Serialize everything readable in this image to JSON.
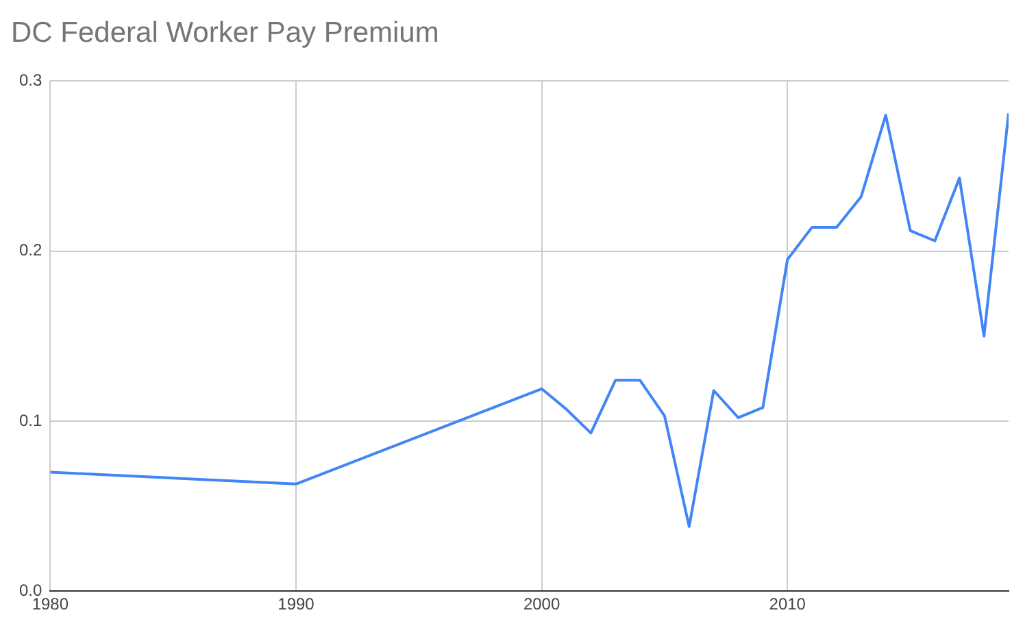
{
  "chart_data": {
    "type": "line",
    "title": "DC Federal Worker Pay Premium",
    "x": [
      1980,
      1990,
      2000,
      2001,
      2002,
      2003,
      2004,
      2005,
      2006,
      2007,
      2008,
      2009,
      2010,
      2011,
      2012,
      2013,
      2014,
      2015,
      2016,
      2017,
      2018,
      2019
    ],
    "series": [
      {
        "color": "#4285f4",
        "values": [
          0.07,
          0.063,
          0.119,
          0.107,
          0.093,
          0.124,
          0.124,
          0.103,
          0.038,
          0.118,
          0.102,
          0.108,
          0.195,
          0.214,
          0.214,
          0.232,
          0.28,
          0.212,
          0.206,
          0.243,
          0.15,
          0.281
        ]
      }
    ],
    "xlim": [
      1980,
      2019
    ],
    "xticks": [
      1980,
      1990,
      2000,
      2010
    ],
    "ylim": [
      0,
      0.3
    ],
    "yticks": [
      {
        "value": 0,
        "label": "0.0"
      },
      0.1,
      0.2,
      0.3
    ],
    "grid": true,
    "legend": false,
    "marker": "none",
    "line_style": "solid"
  }
}
